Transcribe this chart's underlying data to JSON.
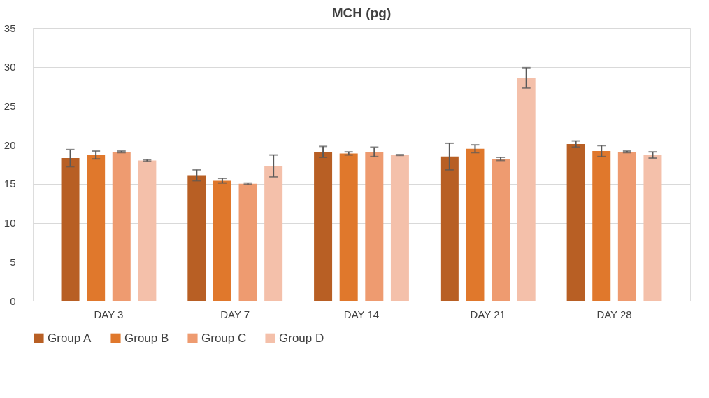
{
  "chart_data": {
    "type": "bar",
    "title": "MCH (pg)",
    "categories": [
      "DAY 3",
      "DAY 7",
      "DAY 14",
      "DAY 21",
      "DAY 28"
    ],
    "series": [
      {
        "name": "Group A",
        "color": "#b85f24",
        "values": [
          18.3,
          16.1,
          19.1,
          18.5,
          20.1
        ],
        "errors": [
          1.1,
          0.7,
          0.7,
          1.7,
          0.4
        ]
      },
      {
        "name": "Group B",
        "color": "#e0782c",
        "values": [
          18.7,
          15.4,
          18.9,
          19.5,
          19.2
        ],
        "errors": [
          0.5,
          0.3,
          0.2,
          0.5,
          0.7
        ]
      },
      {
        "name": "Group C",
        "color": "#ee9b70",
        "values": [
          19.1,
          15.0,
          19.1,
          18.2,
          19.1
        ],
        "errors": [
          0.1,
          0.1,
          0.6,
          0.2,
          0.1
        ]
      },
      {
        "name": "Group D",
        "color": "#f4c0aa",
        "values": [
          18.0,
          17.3,
          18.7,
          28.6,
          18.7
        ],
        "errors": [
          0.1,
          1.4,
          0.05,
          1.3,
          0.4
        ]
      }
    ],
    "ylim": [
      0,
      35
    ],
    "yticks": [
      0,
      5,
      10,
      15,
      20,
      25,
      30,
      35
    ],
    "grid": "y",
    "legend": "bottom"
  }
}
